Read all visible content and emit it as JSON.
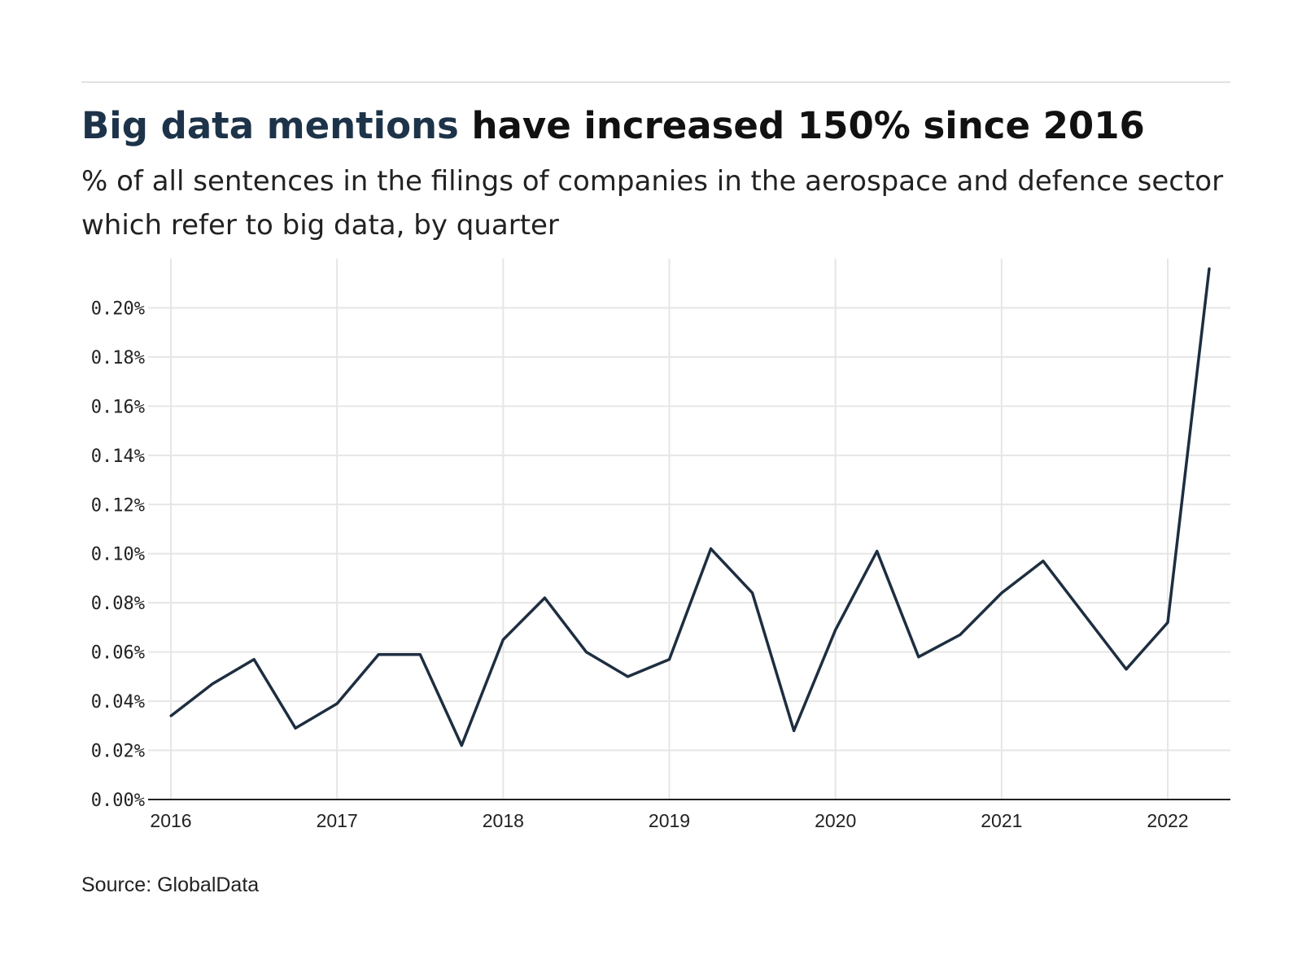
{
  "header": {
    "title_highlight": "Big data mentions",
    "title_rest": " have increased 150% since 2016",
    "subtitle": "% of all sentences in the filings of companies in the aerospace and defence sector which refer to big data, by quarter"
  },
  "footer": {
    "source": "Source: GlobalData"
  },
  "colors": {
    "line": "#1d2e40",
    "highlight": "#1d3349",
    "grid": "#e6e6e6",
    "axis": "#222222"
  },
  "chart_data": {
    "type": "line",
    "title": "Big data mentions have increased 150% since 2016",
    "xlabel": "",
    "ylabel": "",
    "xlim": [
      2016,
      2022.34
    ],
    "ylim": [
      0,
      0.22
    ],
    "y_ticks": [
      0,
      0.02,
      0.04,
      0.06,
      0.08,
      0.1,
      0.12,
      0.14,
      0.16,
      0.18,
      0.2
    ],
    "y_tick_labels": [
      "0.00%",
      "0.02%",
      "0.04%",
      "0.06%",
      "0.08%",
      "0.10%",
      "0.12%",
      "0.14%",
      "0.16%",
      "0.18%",
      "0.20%"
    ],
    "x_ticks": [
      2016,
      2017,
      2018,
      2019,
      2020,
      2021,
      2022
    ],
    "x_tick_labels": [
      "2016",
      "2017",
      "2018",
      "2019",
      "2020",
      "2021",
      "2022"
    ],
    "grid": true,
    "x": [
      "2016 Q1",
      "2016 Q2",
      "2016 Q3",
      "2016 Q4",
      "2017 Q1",
      "2017 Q2",
      "2017 Q3",
      "2017 Q4",
      "2018 Q1",
      "2018 Q2",
      "2018 Q3",
      "2018 Q4",
      "2019 Q1",
      "2019 Q2",
      "2019 Q3",
      "2019 Q4",
      "2020 Q1",
      "2020 Q2",
      "2020 Q3",
      "2020 Q4",
      "2021 Q1",
      "2021 Q2",
      "2021 Q3",
      "2021 Q4",
      "2022 Q1",
      "2022 Q2"
    ],
    "x_numeric": [
      2016.0,
      2016.25,
      2016.5,
      2016.75,
      2017.0,
      2017.25,
      2017.5,
      2017.75,
      2018.0,
      2018.25,
      2018.5,
      2018.75,
      2019.0,
      2019.25,
      2019.5,
      2019.75,
      2020.0,
      2020.25,
      2020.5,
      2020.75,
      2021.0,
      2021.25,
      2021.5,
      2021.75,
      2022.0,
      2022.25
    ],
    "series": [
      {
        "name": "",
        "values": [
          0.034,
          0.047,
          0.057,
          0.029,
          0.039,
          0.059,
          0.059,
          0.022,
          0.065,
          0.082,
          0.06,
          0.05,
          0.057,
          0.102,
          0.084,
          0.028,
          0.069,
          0.101,
          0.058,
          0.067,
          0.084,
          0.097,
          0.075,
          0.053,
          0.072,
          0.216
        ]
      }
    ]
  }
}
